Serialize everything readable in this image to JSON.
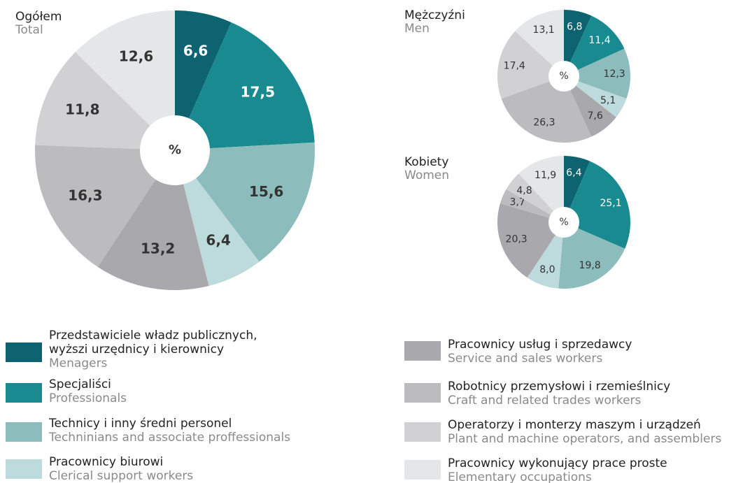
{
  "chart_data": [
    {
      "type": "pie",
      "title": "Ogółem",
      "subtitle": "Total",
      "center_label": "%",
      "values": [
        6.6,
        17.5,
        15.6,
        6.4,
        13.2,
        16.3,
        11.8,
        12.6
      ],
      "value_labels": [
        "6,6",
        "17,5",
        "15,6",
        "6,4",
        "13,2",
        "16,3",
        "11,8",
        "12,6"
      ]
    },
    {
      "type": "pie",
      "title": "Mężczyźni",
      "subtitle": "Men",
      "center_label": "%",
      "values": [
        6.8,
        11.4,
        12.3,
        5.1,
        7.6,
        26.3,
        17.4,
        13.1
      ],
      "value_labels": [
        "6,8",
        "11,4",
        "12,3",
        "5,1",
        "7,6",
        "26,3",
        "17,4",
        "13,1"
      ]
    },
    {
      "type": "pie",
      "title": "Kobiety",
      "subtitle": "Women",
      "center_label": "%",
      "values": [
        6.4,
        25.1,
        19.8,
        8.0,
        20.3,
        3.7,
        4.8,
        11.9
      ],
      "value_labels": [
        "6,4",
        "25,1",
        "19,8",
        "8,0",
        "20,3",
        "3,7",
        "4,8",
        "11,9"
      ]
    }
  ],
  "legend": [
    {
      "color": "#0d6470",
      "label": [
        "Przedstawiciele władz publicznych,",
        "wyższi urzędnicy i kierownicy"
      ],
      "label_en": "Menagers"
    },
    {
      "color": "#1a8a91",
      "label": [
        "Specjaliści"
      ],
      "label_en": "Professionals"
    },
    {
      "color": "#8dbcbd",
      "label": [
        "Technicy i inny średni personel"
      ],
      "label_en": "Techninians and associate proffessionals"
    },
    {
      "color": "#bddbdc",
      "label": [
        "Pracownicy biurowi"
      ],
      "label_en": "Clerical support workers"
    },
    {
      "color": "#a9a8ad",
      "label": [
        "Pracownicy usług  i sprzedawcy"
      ],
      "label_en": "Service and sales workers"
    },
    {
      "color": "#bcbcbf",
      "label": [
        "Robotnicy przemysłowi i rzemieślnicy"
      ],
      "label_en": "Craft and related trades workers"
    },
    {
      "color": "#d1d1d3",
      "label": [
        "Operatorzy i monterzy maszym i urządzeń"
      ],
      "label_en": "Plant and machine operators, and assemblers"
    },
    {
      "color": "#e5e6e8",
      "label": [
        "Pracownicy wykonujący prace proste"
      ],
      "label_en": "Elementary occupations"
    }
  ]
}
